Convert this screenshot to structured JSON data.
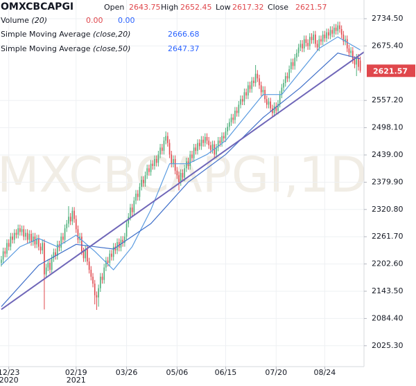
{
  "chart_data": {
    "type": "candlestick",
    "symbol": "OMXCBCAPGI",
    "watermark": "MXCBCAPGI,1D",
    "quote": [
      {
        "label": "Open",
        "value": 2643.75
      },
      {
        "label": "High",
        "value": 2652.45
      },
      {
        "label": "Low",
        "value": 2617.32
      },
      {
        "label": "Close",
        "value": 2621.57
      }
    ],
    "quote_color": "#e0474c",
    "volume": {
      "name": "Volume",
      "params": "(20)",
      "values": [
        "0.00",
        "0.00"
      ],
      "colors": [
        "#e0474c",
        "#2962ff"
      ]
    },
    "up_color": "#4caf7a",
    "down_color": "#e0474c",
    "candles": [
      [
        2205,
        2220,
        2197,
        2212
      ],
      [
        2212,
        2238,
        2204,
        2230
      ],
      [
        2230,
        2238,
        2217,
        2225
      ],
      [
        2225,
        2256,
        2217,
        2248
      ],
      [
        2248,
        2256,
        2232,
        2240
      ],
      [
        2240,
        2270,
        2232,
        2262
      ],
      [
        2262,
        2270,
        2247,
        2255
      ],
      [
        2255,
        2278,
        2247,
        2270
      ],
      [
        2270,
        2278,
        2258,
        2266
      ],
      [
        2266,
        2288,
        2258,
        2280
      ],
      [
        2280,
        2288,
        2264,
        2272
      ],
      [
        2272,
        2286,
        2264,
        2278
      ],
      [
        2278,
        2286,
        2254,
        2262
      ],
      [
        2262,
        2278,
        2254,
        2270
      ],
      [
        2270,
        2278,
        2247,
        2255
      ],
      [
        2255,
        2276,
        2247,
        2268
      ],
      [
        2268,
        2276,
        2242,
        2250
      ],
      [
        2250,
        2270,
        2242,
        2262
      ],
      [
        2262,
        2270,
        2237,
        2245
      ],
      [
        2245,
        2266,
        2237,
        2258
      ],
      [
        2258,
        2266,
        2232,
        2240
      ],
      [
        2240,
        2248,
        2224,
        2232
      ],
      [
        2232,
        2256,
        2224,
        2248
      ],
      [
        2248,
        2256,
        2104,
        2180
      ],
      [
        2180,
        2203,
        2172,
        2195
      ],
      [
        2195,
        2213,
        2187,
        2205
      ],
      [
        2205,
        2213,
        2182,
        2190
      ],
      [
        2190,
        2223,
        2182,
        2215
      ],
      [
        2215,
        2236,
        2207,
        2228
      ],
      [
        2228,
        2236,
        2212,
        2220
      ],
      [
        2220,
        2253,
        2212,
        2245
      ],
      [
        2245,
        2253,
        2230,
        2238
      ],
      [
        2238,
        2270,
        2230,
        2262
      ],
      [
        2262,
        2270,
        2247,
        2255
      ],
      [
        2255,
        2288,
        2247,
        2280
      ],
      [
        2280,
        2298,
        2272,
        2290
      ],
      [
        2290,
        2328,
        2282,
        2305
      ],
      [
        2305,
        2313,
        2287,
        2295
      ],
      [
        2295,
        2326,
        2287,
        2318
      ],
      [
        2318,
        2326,
        2292,
        2300
      ],
      [
        2300,
        2308,
        2270,
        2278
      ],
      [
        2278,
        2286,
        2247,
        2255
      ],
      [
        2255,
        2270,
        2247,
        2262
      ],
      [
        2262,
        2270,
        2222,
        2230
      ],
      [
        2230,
        2238,
        2207,
        2215
      ],
      [
        2215,
        2243,
        2207,
        2235
      ],
      [
        2235,
        2243,
        2200,
        2208
      ],
      [
        2208,
        2216,
        2182,
        2190
      ],
      [
        2190,
        2198,
        2167,
        2175
      ],
      [
        2175,
        2183,
        2152,
        2160
      ],
      [
        2160,
        2168,
        2115,
        2135
      ],
      [
        2135,
        2143,
        2103,
        2130
      ],
      [
        2130,
        2158,
        2110,
        2150
      ],
      [
        2150,
        2183,
        2142,
        2175
      ],
      [
        2175,
        2183,
        2160,
        2168
      ],
      [
        2168,
        2203,
        2160,
        2195
      ],
      [
        2195,
        2218,
        2187,
        2210
      ],
      [
        2210,
        2218,
        2197,
        2205
      ],
      [
        2205,
        2233,
        2197,
        2225
      ],
      [
        2225,
        2233,
        2210,
        2218
      ],
      [
        2218,
        2248,
        2210,
        2240
      ],
      [
        2240,
        2248,
        2224,
        2232
      ],
      [
        2232,
        2258,
        2224,
        2250
      ],
      [
        2250,
        2258,
        2230,
        2238
      ],
      [
        2238,
        2263,
        2230,
        2255
      ],
      [
        2255,
        2263,
        2240,
        2248
      ],
      [
        2248,
        2270,
        2240,
        2262
      ],
      [
        2262,
        2298,
        2254,
        2290
      ],
      [
        2290,
        2313,
        2282,
        2305
      ],
      [
        2305,
        2333,
        2297,
        2325
      ],
      [
        2325,
        2333,
        2307,
        2315
      ],
      [
        2315,
        2348,
        2307,
        2340
      ],
      [
        2340,
        2363,
        2332,
        2355
      ],
      [
        2355,
        2363,
        2340,
        2348
      ],
      [
        2348,
        2378,
        2340,
        2370
      ],
      [
        2370,
        2393,
        2362,
        2385
      ],
      [
        2385,
        2393,
        2370,
        2378
      ],
      [
        2378,
        2403,
        2370,
        2395
      ],
      [
        2395,
        2418,
        2387,
        2410
      ],
      [
        2410,
        2418,
        2394,
        2402
      ],
      [
        2402,
        2428,
        2394,
        2420
      ],
      [
        2420,
        2428,
        2407,
        2415
      ],
      [
        2415,
        2438,
        2407,
        2430
      ],
      [
        2430,
        2438,
        2414,
        2422
      ],
      [
        2422,
        2448,
        2414,
        2440
      ],
      [
        2440,
        2463,
        2432,
        2455
      ],
      [
        2455,
        2463,
        2440,
        2448
      ],
      [
        2448,
        2478,
        2440,
        2470
      ],
      [
        2470,
        2490,
        2462,
        2480
      ],
      [
        2480,
        2488,
        2457,
        2465
      ],
      [
        2465,
        2473,
        2432,
        2440
      ],
      [
        2440,
        2448,
        2412,
        2420
      ],
      [
        2420,
        2438,
        2412,
        2430
      ],
      [
        2430,
        2438,
        2397,
        2405
      ],
      [
        2405,
        2413,
        2387,
        2395
      ],
      [
        2395,
        2403,
        2362,
        2380
      ],
      [
        2380,
        2408,
        2372,
        2400
      ],
      [
        2400,
        2408,
        2382,
        2390
      ],
      [
        2390,
        2418,
        2382,
        2410
      ],
      [
        2410,
        2433,
        2402,
        2425
      ],
      [
        2425,
        2433,
        2407,
        2415
      ],
      [
        2415,
        2448,
        2407,
        2440
      ],
      [
        2440,
        2448,
        2424,
        2432
      ],
      [
        2432,
        2463,
        2424,
        2455
      ],
      [
        2455,
        2463,
        2440,
        2448
      ],
      [
        2448,
        2473,
        2440,
        2465
      ],
      [
        2465,
        2473,
        2450,
        2458
      ],
      [
        2458,
        2480,
        2450,
        2472
      ],
      [
        2472,
        2480,
        2457,
        2465
      ],
      [
        2465,
        2486,
        2457,
        2478
      ],
      [
        2478,
        2486,
        2462,
        2470
      ],
      [
        2470,
        2478,
        2452,
        2460
      ],
      [
        2460,
        2468,
        2442,
        2450
      ],
      [
        2450,
        2470,
        2442,
        2462
      ],
      [
        2462,
        2470,
        2432,
        2440
      ],
      [
        2440,
        2463,
        2432,
        2455
      ],
      [
        2455,
        2478,
        2447,
        2470
      ],
      [
        2470,
        2478,
        2457,
        2465
      ],
      [
        2465,
        2488,
        2457,
        2480
      ],
      [
        2480,
        2488,
        2467,
        2475
      ],
      [
        2475,
        2498,
        2467,
        2490
      ],
      [
        2490,
        2508,
        2482,
        2500
      ],
      [
        2500,
        2518,
        2492,
        2510
      ],
      [
        2510,
        2528,
        2502,
        2520
      ],
      [
        2520,
        2528,
        2507,
        2515
      ],
      [
        2515,
        2543,
        2507,
        2535
      ],
      [
        2535,
        2543,
        2522,
        2530
      ],
      [
        2530,
        2556,
        2522,
        2548
      ],
      [
        2548,
        2568,
        2540,
        2560
      ],
      [
        2560,
        2568,
        2547,
        2555
      ],
      [
        2555,
        2583,
        2547,
        2575
      ],
      [
        2575,
        2583,
        2560,
        2568
      ],
      [
        2568,
        2598,
        2560,
        2590
      ],
      [
        2590,
        2598,
        2574,
        2582
      ],
      [
        2582,
        2608,
        2574,
        2600
      ],
      [
        2600,
        2608,
        2587,
        2595
      ],
      [
        2595,
        2634,
        2587,
        2615
      ],
      [
        2615,
        2623,
        2597,
        2605
      ],
      [
        2605,
        2613,
        2582,
        2590
      ],
      [
        2590,
        2598,
        2567,
        2575
      ],
      [
        2575,
        2588,
        2567,
        2580
      ],
      [
        2580,
        2588,
        2552,
        2560
      ],
      [
        2560,
        2568,
        2540,
        2548
      ],
      [
        2548,
        2563,
        2540,
        2555
      ],
      [
        2555,
        2563,
        2532,
        2540
      ],
      [
        2540,
        2548,
        2522,
        2530
      ],
      [
        2530,
        2553,
        2522,
        2545
      ],
      [
        2545,
        2553,
        2527,
        2535
      ],
      [
        2535,
        2558,
        2527,
        2550
      ],
      [
        2550,
        2578,
        2542,
        2570
      ],
      [
        2570,
        2593,
        2562,
        2585
      ],
      [
        2585,
        2603,
        2577,
        2595
      ],
      [
        2595,
        2618,
        2587,
        2610
      ],
      [
        2610,
        2618,
        2597,
        2605
      ],
      [
        2605,
        2633,
        2597,
        2625
      ],
      [
        2625,
        2648,
        2617,
        2640
      ],
      [
        2640,
        2648,
        2624,
        2632
      ],
      [
        2632,
        2658,
        2624,
        2650
      ],
      [
        2650,
        2668,
        2642,
        2660
      ],
      [
        2660,
        2680,
        2652,
        2672
      ],
      [
        2672,
        2688,
        2664,
        2680
      ],
      [
        2680,
        2688,
        2662,
        2670
      ],
      [
        2670,
        2698,
        2662,
        2690
      ],
      [
        2690,
        2698,
        2674,
        2682
      ],
      [
        2682,
        2690,
        2667,
        2675
      ],
      [
        2675,
        2703,
        2667,
        2695
      ],
      [
        2695,
        2703,
        2680,
        2688
      ],
      [
        2688,
        2708,
        2680,
        2700
      ],
      [
        2700,
        2708,
        2672,
        2680
      ],
      [
        2680,
        2688,
        2664,
        2672
      ],
      [
        2672,
        2698,
        2664,
        2690
      ],
      [
        2690,
        2698,
        2677,
        2685
      ],
      [
        2685,
        2708,
        2677,
        2700
      ],
      [
        2700,
        2708,
        2684,
        2692
      ],
      [
        2692,
        2713,
        2684,
        2705
      ],
      [
        2705,
        2713,
        2690,
        2698
      ],
      [
        2698,
        2718,
        2690,
        2710
      ],
      [
        2710,
        2718,
        2694,
        2702
      ],
      [
        2702,
        2723,
        2694,
        2715
      ],
      [
        2715,
        2723,
        2700,
        2708
      ],
      [
        2708,
        2728,
        2700,
        2720
      ],
      [
        2720,
        2728,
        2704,
        2712
      ],
      [
        2712,
        2720,
        2692,
        2700
      ],
      [
        2700,
        2708,
        2677,
        2685
      ],
      [
        2685,
        2698,
        2677,
        2690
      ],
      [
        2690,
        2698,
        2662,
        2670
      ],
      [
        2670,
        2678,
        2652,
        2660
      ],
      [
        2660,
        2673,
        2652,
        2665
      ],
      [
        2665,
        2673,
        2637,
        2645
      ],
      [
        2645,
        2653,
        2627,
        2635
      ],
      [
        2635,
        2658,
        2610,
        2650
      ],
      [
        2650,
        2658,
        2622,
        2630
      ],
      [
        2643.75,
        2652.45,
        2617.32,
        2621.57
      ]
    ],
    "series": [
      {
        "name": "Simple Moving Average",
        "params": "(close,20)",
        "color": "#2962ff",
        "line_color": "#5a9be0",
        "legend_value": 2666.68,
        "x": [
          0,
          10,
          20,
          30,
          40,
          50,
          60,
          70,
          80,
          90,
          100,
          110,
          120,
          130,
          140,
          150,
          160,
          170,
          180,
          192
        ],
        "values": [
          2200,
          2240,
          2258,
          2240,
          2265,
          2230,
          2190,
          2240,
          2320,
          2420,
          2420,
          2440,
          2470,
          2520,
          2570,
          2570,
          2620,
          2670,
          2695,
          2666.68
        ]
      },
      {
        "name": "Simple Moving Average",
        "params": "(close,50)",
        "color": "#2962ff",
        "line_color": "#3f6fc9",
        "legend_value": 2647.37,
        "x": [
          0,
          20,
          40,
          60,
          80,
          100,
          120,
          140,
          160,
          180,
          192
        ],
        "values": [
          2110,
          2200,
          2245,
          2235,
          2290,
          2380,
          2440,
          2520,
          2585,
          2660,
          2647.37
        ]
      }
    ],
    "trendline": {
      "color": "#6f66b8",
      "x": [
        0,
        195
      ],
      "values": [
        2104,
        2665
      ]
    },
    "xlim": [
      -0.7,
      194
    ],
    "ylim": [
      1980,
      2775
    ],
    "xticks": [
      {
        "value": 4,
        "label": "12/23"
      },
      {
        "value": 40,
        "label": "02/19"
      },
      {
        "value": 67,
        "label": "03/26"
      },
      {
        "value": 94,
        "label": "05/06"
      },
      {
        "value": 120,
        "label": "06/15"
      },
      {
        "value": 147,
        "label": "07/20"
      },
      {
        "value": 173,
        "label": "08/24"
      }
    ],
    "x_year_labels": [
      {
        "value": 4,
        "label": "2020"
      },
      {
        "value": 40,
        "label": "2021"
      }
    ],
    "yticks": [
      {
        "value": 2734.5,
        "label": "2734.50"
      },
      {
        "value": 2675.4,
        "label": "2675.40"
      },
      {
        "value": 2557.2,
        "label": "2557.20"
      },
      {
        "value": 2498.1,
        "label": "2498.10"
      },
      {
        "value": 2439,
        "label": "2439.00"
      },
      {
        "value": 2379.9,
        "label": "2379.90"
      },
      {
        "value": 2320.8,
        "label": "2320.80"
      },
      {
        "value": 2261.7,
        "label": "2261.70"
      },
      {
        "value": 2202.6,
        "label": "2202.60"
      },
      {
        "value": 2143.5,
        "label": "2143.50"
      },
      {
        "value": 2084.4,
        "label": "2084.40"
      },
      {
        "value": 2025.3,
        "label": "2025.30"
      }
    ],
    "grid": true
  }
}
